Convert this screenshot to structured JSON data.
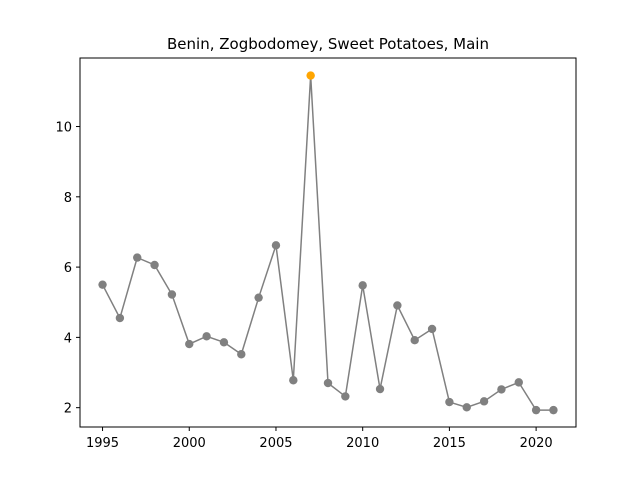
{
  "chart_data": {
    "type": "line",
    "title": "Benin, Zogbodomey, Sweet Potatoes, Main",
    "xlabel": "",
    "ylabel": "",
    "xlim": [
      1993.7,
      2022.3
    ],
    "ylim": [
      1.45,
      11.95
    ],
    "xticks": [
      1995,
      2000,
      2005,
      2010,
      2015,
      2020
    ],
    "yticks": [
      2,
      4,
      6,
      8,
      10
    ],
    "grid": false,
    "line_color": "#808080",
    "marker_color": "#808080",
    "highlight_color": "#FFA500",
    "series": [
      {
        "x": [
          1995,
          1996,
          1997,
          1998,
          1999,
          2000,
          2001,
          2002,
          2003,
          2004,
          2005,
          2006,
          2007,
          2008,
          2009,
          2010,
          2011,
          2012,
          2013,
          2014,
          2015,
          2016,
          2017,
          2018,
          2019,
          2020,
          2021
        ],
        "values": [
          5.5,
          4.55,
          6.27,
          6.06,
          5.22,
          3.81,
          4.03,
          3.86,
          3.52,
          5.13,
          6.62,
          2.78,
          11.45,
          2.7,
          2.32,
          5.48,
          2.53,
          4.91,
          3.92,
          4.24,
          2.16,
          2.01,
          2.18,
          2.52,
          2.72,
          1.93,
          1.93
        ],
        "highlight_index": 12
      }
    ]
  }
}
